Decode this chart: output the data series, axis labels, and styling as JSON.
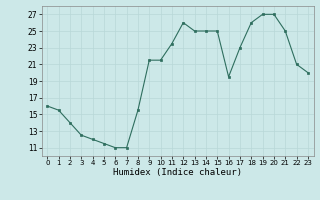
{
  "x": [
    0,
    1,
    2,
    3,
    4,
    5,
    6,
    7,
    8,
    9,
    10,
    11,
    12,
    13,
    14,
    15,
    16,
    17,
    18,
    19,
    20,
    21,
    22,
    23
  ],
  "y": [
    16,
    15.5,
    14,
    12.5,
    12,
    11.5,
    11,
    11,
    15.5,
    21.5,
    21.5,
    23.5,
    26,
    25,
    25,
    25,
    19.5,
    23,
    26,
    27,
    27,
    25,
    21,
    20
  ],
  "line_color": "#2e6e5e",
  "marker_color": "#2e6e5e",
  "bg_color": "#cce8e8",
  "grid_color": "#b8d8d8",
  "xlabel": "Humidex (Indice chaleur)",
  "yticks": [
    11,
    13,
    15,
    17,
    19,
    21,
    23,
    25,
    27
  ],
  "xticks": [
    0,
    1,
    2,
    3,
    4,
    5,
    6,
    7,
    8,
    9,
    10,
    11,
    12,
    13,
    14,
    15,
    16,
    17,
    18,
    19,
    20,
    21,
    22,
    23
  ],
  "xlim": [
    -0.5,
    23.5
  ],
  "ylim": [
    10,
    28
  ]
}
